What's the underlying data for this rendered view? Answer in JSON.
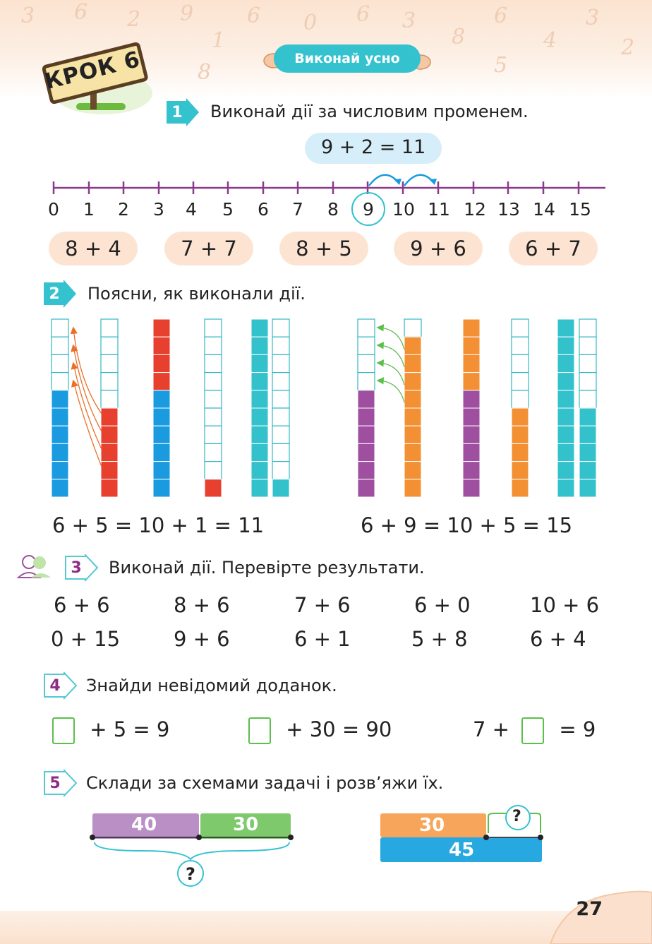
{
  "header": {
    "step_label": "КРОК 6",
    "banner": "Виконай усно"
  },
  "task1": {
    "number": "1",
    "text": "Виконай дії за числовим променем.",
    "example": "9 + 2 = 11",
    "ticks": [
      "0",
      "1",
      "2",
      "3",
      "4",
      "5",
      "6",
      "7",
      "8",
      "9",
      "10",
      "11",
      "12",
      "13",
      "14",
      "15"
    ],
    "highlighted_tick": "9",
    "clouds": [
      "8 + 4",
      "7 + 7",
      "8 + 5",
      "9 + 6",
      "6 + 7"
    ]
  },
  "task2": {
    "number": "2",
    "text": "Поясни, як виконали дії.",
    "equation_left": "6 + 5 = 10 + 1 = 11",
    "equation_right": "6 + 9 = 10 + 5 = 15",
    "colors": {
      "blue": "#1a9be0",
      "red": "#e8402f",
      "teal": "#33c2cc",
      "purple": "#9f4fa0",
      "orange": "#f39033"
    }
  },
  "task3": {
    "number": "3",
    "text": "Виконай дії. Перевірте результати.",
    "row1": [
      "6 + 6",
      "8 + 6",
      "7 + 6",
      "6 + 0",
      "10 + 6"
    ],
    "row2": [
      "0 + 15",
      "9 + 6",
      "6 + 1",
      "5 + 8",
      "6 + 4"
    ]
  },
  "task4": {
    "number": "4",
    "text": "Знайди невідомий доданок.",
    "eq1_rest": "+ 5 = 9",
    "eq2_rest": "+ 30 = 90",
    "eq3_pre": "7 +",
    "eq3_rest": "= 9"
  },
  "task5": {
    "number": "5",
    "text": "Склади за схемами задачі і розв’яжи їх.",
    "scheme1": {
      "part1": "40",
      "part2": "30",
      "total": "?"
    },
    "scheme2": {
      "part1": "30",
      "part2": "?",
      "total": "45"
    }
  },
  "footer": {
    "page_number": "27"
  }
}
